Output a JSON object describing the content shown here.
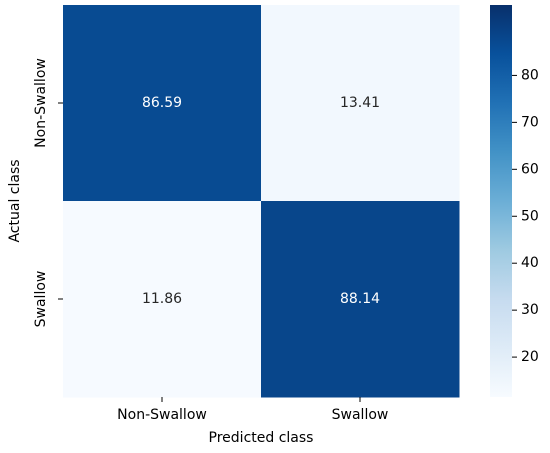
{
  "chart_data": {
    "type": "heatmap",
    "x_label": "Predicted class",
    "y_label": "Actual class",
    "x_categories": [
      "Non-Swallow",
      "Swallow"
    ],
    "y_categories": [
      "Non-Swallow",
      "Swallow"
    ],
    "values": [
      [
        86.59,
        13.41
      ],
      [
        11.86,
        88.14
      ]
    ],
    "colormap": [
      "#f7fbff",
      "#deebf7",
      "#c6dbef",
      "#9ecae1",
      "#6baed6",
      "#4292c6",
      "#2171b5",
      "#08519c",
      "#08306b"
    ],
    "clim": [
      11.5,
      95
    ],
    "cticks": [
      20,
      30,
      40,
      50,
      60,
      70,
      80
    ]
  }
}
